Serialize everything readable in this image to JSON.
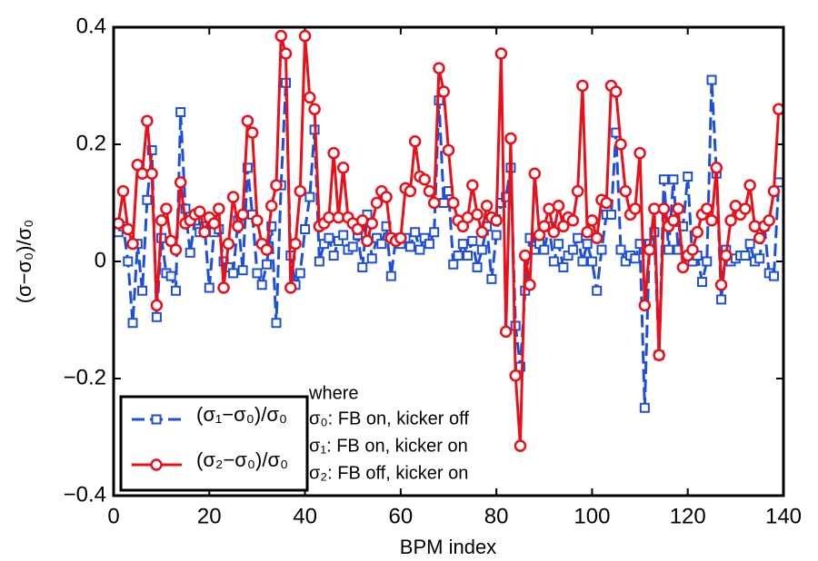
{
  "chart_data": {
    "type": "line",
    "xlabel": "BPM index",
    "ylabel": "(σ−σ₀)/σ₀",
    "xlim": [
      0,
      140
    ],
    "ylim": [
      -0.4,
      0.4
    ],
    "xticks": [
      0,
      20,
      40,
      60,
      80,
      100,
      120,
      140
    ],
    "yticks": [
      {
        "value": -0.4,
        "label": "−0.4"
      },
      {
        "value": -0.2,
        "label": "−0.2"
      },
      0,
      0.2,
      0.4
    ],
    "legend": "lower left",
    "annotations": [
      "where",
      "σ₀: FB on, kicker off",
      "σ₁: FB on, kicker on",
      "σ₂: FB off, kicker on"
    ],
    "x": [
      1,
      2,
      3,
      4,
      5,
      6,
      7,
      8,
      9,
      10,
      11,
      12,
      13,
      14,
      15,
      16,
      17,
      18,
      19,
      20,
      21,
      22,
      23,
      24,
      25,
      26,
      27,
      28,
      29,
      30,
      31,
      32,
      33,
      34,
      35,
      36,
      37,
      38,
      39,
      40,
      41,
      42,
      43,
      44,
      45,
      46,
      47,
      48,
      49,
      50,
      51,
      52,
      53,
      54,
      55,
      56,
      57,
      58,
      59,
      60,
      61,
      62,
      63,
      64,
      65,
      66,
      67,
      68,
      69,
      70,
      71,
      72,
      73,
      74,
      75,
      76,
      77,
      78,
      79,
      80,
      81,
      82,
      83,
      84,
      85,
      86,
      87,
      88,
      89,
      90,
      91,
      92,
      93,
      94,
      95,
      96,
      97,
      98,
      99,
      100,
      101,
      102,
      103,
      104,
      105,
      106,
      107,
      108,
      109,
      110,
      111,
      112,
      113,
      114,
      115,
      116,
      117,
      118,
      119,
      120,
      121,
      122,
      123,
      124,
      125,
      126,
      127,
      128,
      129,
      130,
      131,
      132,
      133,
      134,
      135,
      136,
      137,
      138,
      139
    ],
    "series": [
      {
        "name": "(σ₁−σ₀)/σ₀",
        "color": "#1f4fd6",
        "marker": "square",
        "dashed": true,
        "values": [
          0.05,
          0.06,
          0.0,
          -0.105,
          0.03,
          -0.05,
          0.105,
          0.19,
          -0.095,
          0.04,
          -0.02,
          -0.025,
          -0.05,
          0.255,
          0.09,
          0.015,
          0.07,
          0.05,
          0.06,
          -0.045,
          0.05,
          0.055,
          0.0,
          -0.01,
          -0.02,
          0.07,
          -0.015,
          0.16,
          0.08,
          -0.02,
          -0.04,
          -0.005,
          0.06,
          -0.105,
          0.13,
          0.305,
          0.01,
          -0.04,
          -0.02,
          0.055,
          0.11,
          0.225,
          0.0,
          0.03,
          0.04,
          0.01,
          0.035,
          0.045,
          0.02,
          0.025,
          0.045,
          -0.01,
          0.08,
          0.005,
          0.04,
          0.03,
          0.06,
          -0.025,
          0.04,
          0.03,
          0.04,
          0.025,
          0.05,
          0.02,
          0.04,
          0.03,
          0.05,
          0.275,
          0.1,
          0.12,
          -0.005,
          0.01,
          0.03,
          0.01,
          0.035,
          -0.01,
          0.02,
          0.06,
          -0.03,
          0.045,
          0.1,
          0.11,
          0.16,
          -0.11,
          -0.18,
          -0.05,
          0.04,
          0.02,
          0.03,
          0.02,
          0.06,
          0.0,
          0.03,
          -0.01,
          0.01,
          0.02,
          0.04,
          0.0,
          0.03,
          0.0,
          -0.05,
          0.02,
          0.08,
          0.08,
          0.22,
          0.02,
          0.0,
          0.01,
          0.005,
          0.03,
          -0.25,
          0.03,
          0.05,
          -0.16,
          0.14,
          0.02,
          0.14,
          0.02,
          0.06,
          0.145,
          0.0,
          0.01,
          -0.035,
          0.0,
          0.31,
          0.15,
          -0.065,
          0.02,
          0.0,
          0.005,
          0.01,
          0.01,
          0.03,
          0.0,
          0.005,
          0.06,
          -0.02,
          -0.025,
          0.135
        ]
      },
      {
        "name": "(σ₂−σ₀)/σ₀",
        "color": "#e8101a",
        "marker": "circle",
        "dashed": false,
        "values": [
          0.065,
          0.12,
          0.055,
          0.03,
          0.165,
          0.15,
          0.24,
          0.15,
          -0.075,
          0.07,
          0.09,
          0.035,
          0.02,
          0.135,
          0.065,
          0.07,
          0.08,
          0.085,
          0.05,
          0.075,
          0.065,
          0.09,
          -0.045,
          0.03,
          0.11,
          0.06,
          0.08,
          0.24,
          0.22,
          0.07,
          0.03,
          0.02,
          0.095,
          0.13,
          0.385,
          0.355,
          -0.045,
          0.03,
          0.12,
          0.385,
          0.28,
          0.26,
          0.06,
          0.065,
          0.075,
          0.185,
          0.075,
          0.16,
          0.075,
          0.065,
          0.055,
          0.07,
          0.035,
          0.065,
          0.1,
          0.12,
          0.11,
          0.04,
          0.035,
          0.04,
          0.125,
          0.12,
          0.205,
          0.145,
          0.14,
          0.12,
          0.1,
          0.33,
          0.29,
          0.19,
          0.1,
          0.07,
          0.06,
          0.075,
          0.13,
          0.08,
          0.05,
          0.095,
          0.075,
          0.07,
          0.355,
          -0.12,
          0.21,
          -0.195,
          -0.315,
          0.01,
          -0.04,
          0.15,
          0.045,
          0.06,
          0.09,
          0.05,
          0.095,
          0.06,
          0.075,
          0.07,
          0.12,
          0.3,
          0.05,
          0.07,
          0.04,
          0.105,
          0.1,
          0.3,
          0.29,
          0.2,
          0.12,
          0.08,
          0.09,
          0.185,
          -0.075,
          0.02,
          0.09,
          -0.16,
          0.09,
          0.06,
          0.07,
          0.09,
          -0.01,
          0.01,
          0.02,
          0.05,
          0.08,
          0.09,
          0.07,
          0.16,
          -0.04,
          0.01,
          0.07,
          0.095,
          0.08,
          0.09,
          0.13,
          0.06,
          0.04,
          0.06,
          0.07,
          0.12,
          0.26
        ]
      }
    ]
  }
}
